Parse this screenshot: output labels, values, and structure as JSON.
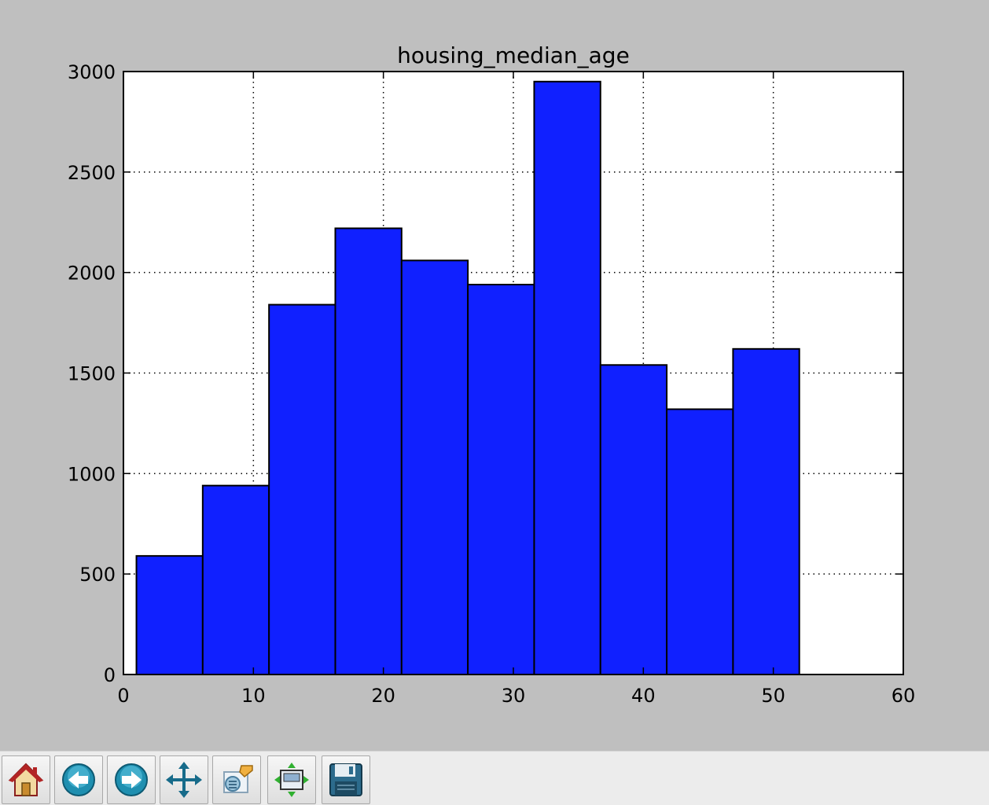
{
  "chart_data": {
    "type": "bar",
    "title": "housing_median_age",
    "xlabel": "",
    "ylabel": "",
    "xlim": [
      0,
      60
    ],
    "ylim": [
      0,
      3000
    ],
    "xticks": [
      0,
      10,
      20,
      30,
      40,
      50,
      60
    ],
    "xtick_labels": [
      "0",
      "10",
      "20",
      "30",
      "40",
      "50",
      "60"
    ],
    "yticks": [
      0,
      500,
      1000,
      1500,
      2000,
      2500,
      3000
    ],
    "ytick_labels": [
      "0",
      "500",
      "1000",
      "1500",
      "2000",
      "2500",
      "3000"
    ],
    "grid": true,
    "bar_color": "#1020ff",
    "bins": [
      {
        "x0": 1.0,
        "x1": 6.1,
        "count": 590
      },
      {
        "x0": 6.1,
        "x1": 11.2,
        "count": 940
      },
      {
        "x0": 11.2,
        "x1": 16.3,
        "count": 1840
      },
      {
        "x0": 16.3,
        "x1": 21.4,
        "count": 2220
      },
      {
        "x0": 21.4,
        "x1": 26.5,
        "count": 2060
      },
      {
        "x0": 26.5,
        "x1": 31.6,
        "count": 1940
      },
      {
        "x0": 31.6,
        "x1": 36.7,
        "count": 2950
      },
      {
        "x0": 36.7,
        "x1": 41.8,
        "count": 1540
      },
      {
        "x0": 41.8,
        "x1": 46.9,
        "count": 1320
      },
      {
        "x0": 46.9,
        "x1": 52.0,
        "count": 1620
      }
    ]
  },
  "toolbar": {
    "buttons": [
      {
        "name": "home",
        "icon": "home-icon"
      },
      {
        "name": "back",
        "icon": "back-arrow-icon"
      },
      {
        "name": "forward",
        "icon": "forward-arrow-icon"
      },
      {
        "name": "pan",
        "icon": "pan-move-icon"
      },
      {
        "name": "zoom",
        "icon": "zoom-rect-icon"
      },
      {
        "name": "configure-subplots",
        "icon": "subplots-icon"
      },
      {
        "name": "save",
        "icon": "save-floppy-icon"
      }
    ]
  }
}
